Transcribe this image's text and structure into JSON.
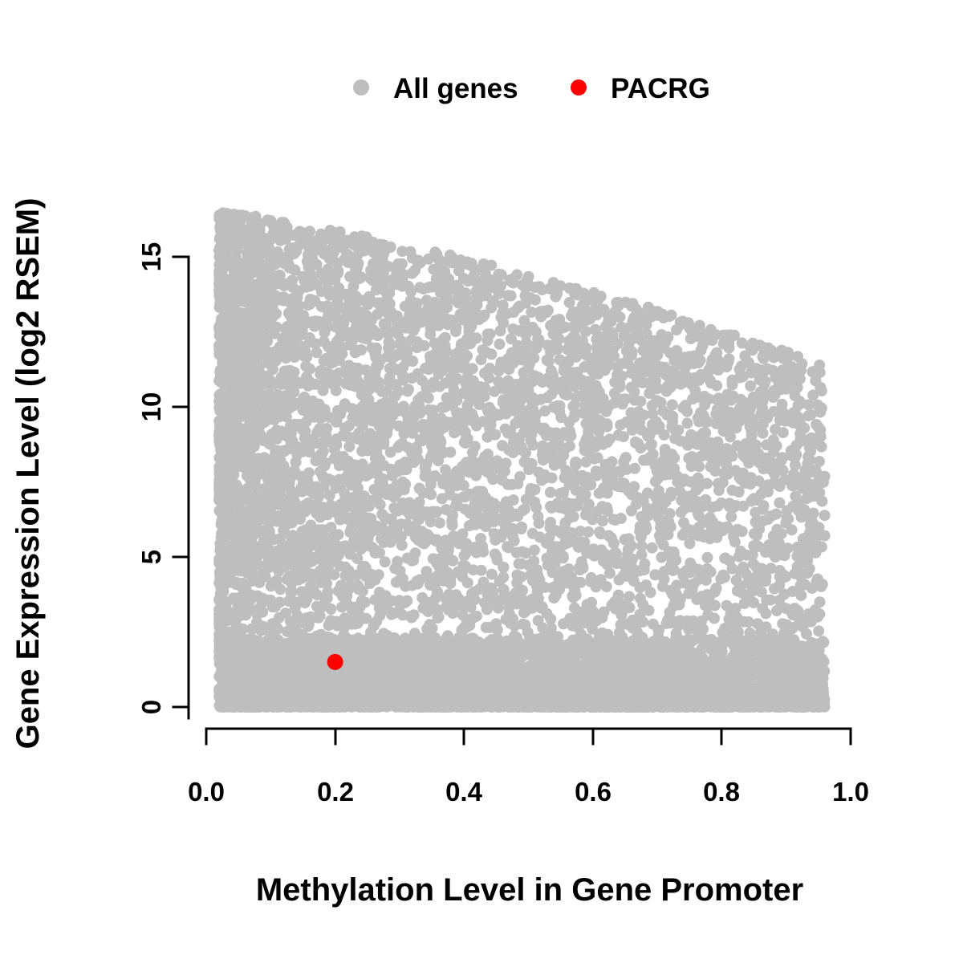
{
  "chart_data": {
    "type": "scatter",
    "title": "",
    "xlabel": "Methylation Level in Gene Promoter",
    "ylabel": "Gene Expression Level (log2 RSEM)",
    "xlim": [
      0,
      1
    ],
    "ylim": [
      0,
      15
    ],
    "x_ticks": [
      "0.0",
      "0.2",
      "0.4",
      "0.6",
      "0.8",
      "1.0"
    ],
    "y_ticks": [
      "0",
      "5",
      "10",
      "15"
    ],
    "grid": false,
    "legend_position": "top-center",
    "legend": [
      {
        "label": "All genes",
        "color": "#bebebe"
      },
      {
        "label": "PACRG",
        "color": "#ff0000"
      }
    ],
    "series": [
      {
        "name": "All genes",
        "marker": "filled-circle",
        "color": "#bebebe",
        "n_points": 9000,
        "seed": 20240615,
        "x_range": [
          0.02,
          0.96
        ],
        "y_range": [
          0,
          16.6
        ],
        "description": "Dense gray cloud of genes. Density is highest at low promoter methylation; the maximum expression level declines as methylation increases (upper-right corner sparse, top values ~16.5 at x~0.05 falling to ~12 at x~0.95). A thick band of near-zero expression spans all methylation levels."
      },
      {
        "name": "PACRG",
        "marker": "filled-circle",
        "color": "#ff0000",
        "points": [
          {
            "x": 0.2,
            "y": 1.5
          }
        ]
      }
    ]
  }
}
